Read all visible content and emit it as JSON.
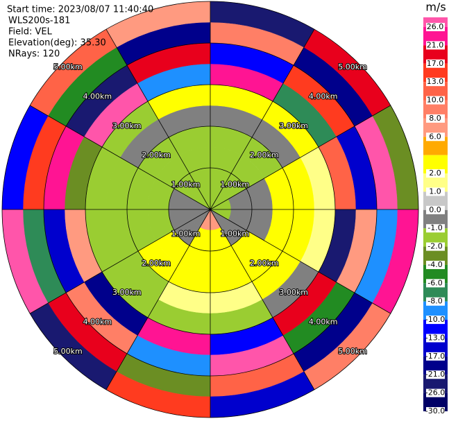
{
  "chart_data": {
    "type": "polar",
    "info": [
      "Start time: 2023/08/07 11:40:40",
      "WLS200s-181",
      "Field: VEL",
      "Elevation(deg): 35.30",
      "NRays: 120"
    ],
    "range_rings": [
      "1.00km",
      "2.00km",
      "3.00km",
      "4.00km",
      "5.00km"
    ],
    "field": [
      [
        -2,
        -2,
        -2,
        -2,
        -0.5,
        2.5,
        21,
        -13,
        8,
        -26
      ],
      [
        -2,
        -2,
        -2,
        -2,
        -0.5,
        3,
        -8,
        13,
        -21,
        17
      ],
      [
        -2,
        -0.5,
        -0.5,
        3,
        3,
        1.5,
        10,
        -17,
        26,
        -4
      ],
      [
        -2,
        -0.5,
        -0.5,
        3,
        3,
        1.5,
        -26,
        6,
        -10,
        21
      ],
      [
        -0.5,
        -0.5,
        3,
        3,
        3,
        -0.5,
        17,
        -6,
        -21,
        8
      ],
      [
        7,
        3,
        3,
        3,
        1.5,
        -2,
        -13,
        26,
        10,
        -17
      ],
      [
        7,
        3,
        3,
        3,
        1.5,
        -2,
        21,
        -10,
        -4,
        13
      ],
      [
        -0.5,
        -0.5,
        3,
        3,
        -2,
        -2,
        -21,
        8,
        17,
        -26
      ],
      [
        -0.5,
        -0.5,
        -2,
        -2,
        -2,
        -2,
        6,
        -17,
        -8,
        26
      ],
      [
        -0.5,
        -0.5,
        -2,
        -2,
        -2,
        -2,
        -4,
        21,
        13,
        -13
      ],
      [
        -2,
        -2,
        -2,
        -2,
        -0.5,
        -2,
        26,
        -26,
        -6,
        10
      ],
      [
        -2,
        -2,
        -2,
        -2,
        -0.5,
        2.5,
        -10,
        17,
        -21,
        6
      ]
    ],
    "colorbar": {
      "unit": "m/s",
      "labels": [
        {
          "value": 26,
          "label": "26.0"
        },
        {
          "value": 21,
          "label": "21.0"
        },
        {
          "value": 17,
          "label": "17.0"
        },
        {
          "value": 13,
          "label": "13.0"
        },
        {
          "value": 10,
          "label": "10.0"
        },
        {
          "value": 8,
          "label": "8.0"
        },
        {
          "value": 6,
          "label": "6.0"
        },
        null,
        {
          "value": 2,
          "label": "2.0"
        },
        {
          "value": 1,
          "label": "1.0"
        },
        {
          "value": 0,
          "label": "0.0"
        },
        {
          "value": -1,
          "label": "-1.0"
        },
        {
          "value": -2,
          "label": "-2.0"
        },
        {
          "value": -4,
          "label": "-4.0"
        },
        {
          "value": -6,
          "label": "-6.0"
        },
        {
          "value": -8,
          "label": "-8.0"
        },
        {
          "value": -10,
          "label": "-10.0"
        },
        {
          "value": -13,
          "label": "-13.0"
        },
        {
          "value": -17,
          "label": "-17.0"
        },
        {
          "value": -21,
          "label": "-21.0"
        },
        {
          "value": -26,
          "label": "-26.0"
        },
        {
          "value": -30,
          "label": "-30.0"
        }
      ],
      "colors": [
        "#ff55aa",
        "#ff1493",
        "#e8001c",
        "#ff3b1f",
        "#ff6347",
        "#ff7f66",
        "#ff9a80",
        "#ffaa00",
        "#ffff00",
        "#ffff88",
        "#c8c8c8",
        "#808080",
        "#9acd32",
        "#6b8e23",
        "#228b22",
        "#2e8b57",
        "#1e90ff",
        "#0000ff",
        "#0000cd",
        "#00008b",
        "#191970",
        "#000066"
      ]
    }
  }
}
